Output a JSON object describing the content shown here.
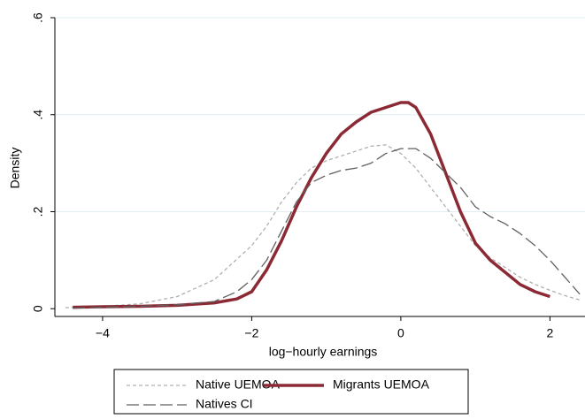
{
  "chart_data": {
    "type": "line",
    "x_label": "log−hourly earnings",
    "y_label": "Density",
    "xlim": [
      -4.64,
      2.47
    ],
    "ylim": [
      -0.016,
      0.6
    ],
    "xticks": [
      {
        "value": -4,
        "label": "−4"
      },
      {
        "value": -2,
        "label": "−2"
      },
      0,
      2
    ],
    "yticks": [
      0,
      {
        "value": 0.2,
        "label": ".2"
      },
      {
        "value": 0.4,
        "label": ".4"
      },
      {
        "value": 0.6,
        "label": ".6"
      }
    ],
    "grid": true,
    "legend_position": "bottom",
    "series": [
      {
        "name": "Native UEMOA",
        "color": "#b0b0b0",
        "line_style": "short-dash",
        "x": [
          -4.5,
          -4,
          -3.5,
          -3,
          -2.5,
          -2,
          -1.8,
          -1.6,
          -1.4,
          -1.2,
          -1,
          -0.8,
          -0.6,
          -0.4,
          -0.2,
          0,
          0.2,
          0.4,
          0.6,
          0.8,
          1,
          1.2,
          1.4,
          1.6,
          1.8,
          2,
          2.2,
          2.4
        ],
        "values": [
          0.002,
          0.005,
          0.01,
          0.025,
          0.06,
          0.13,
          0.17,
          0.22,
          0.26,
          0.29,
          0.305,
          0.315,
          0.325,
          0.335,
          0.338,
          0.32,
          0.29,
          0.25,
          0.21,
          0.17,
          0.13,
          0.105,
          0.085,
          0.065,
          0.05,
          0.038,
          0.027,
          0.018
        ]
      },
      {
        "name": "Migrants UEMOA",
        "color": "#8b2a35",
        "line_style": "thick-solid",
        "x": [
          -4.4,
          -4,
          -3.5,
          -3,
          -2.5,
          -2.2,
          -2,
          -1.8,
          -1.6,
          -1.4,
          -1.2,
          -1,
          -0.8,
          -0.6,
          -0.4,
          -0.2,
          0,
          0.1,
          0.2,
          0.4,
          0.6,
          0.8,
          1,
          1.2,
          1.4,
          1.6,
          1.8,
          2
        ],
        "values": [
          0.003,
          0.004,
          0.005,
          0.007,
          0.012,
          0.02,
          0.035,
          0.08,
          0.14,
          0.21,
          0.27,
          0.32,
          0.36,
          0.385,
          0.405,
          0.415,
          0.425,
          0.425,
          0.415,
          0.36,
          0.28,
          0.2,
          0.135,
          0.1,
          0.075,
          0.05,
          0.035,
          0.025
        ]
      },
      {
        "name": "Natives CI",
        "color": "#606060",
        "line_style": "long-dash",
        "x": [
          -4.4,
          -4,
          -3.5,
          -3,
          -2.5,
          -2.2,
          -2,
          -1.8,
          -1.6,
          -1.4,
          -1.2,
          -1,
          -0.8,
          -0.6,
          -0.4,
          -0.2,
          0,
          0.2,
          0.4,
          0.6,
          0.8,
          1,
          1.2,
          1.4,
          1.6,
          1.8,
          2,
          2.2,
          2.4
        ],
        "values": [
          0.001,
          0.003,
          0.005,
          0.008,
          0.015,
          0.035,
          0.06,
          0.1,
          0.16,
          0.22,
          0.26,
          0.275,
          0.285,
          0.29,
          0.3,
          0.32,
          0.33,
          0.33,
          0.31,
          0.28,
          0.25,
          0.21,
          0.19,
          0.175,
          0.155,
          0.13,
          0.1,
          0.065,
          0.03
        ]
      }
    ]
  }
}
